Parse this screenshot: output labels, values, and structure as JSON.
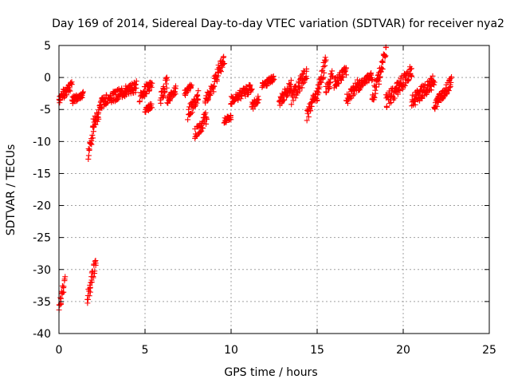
{
  "chart_data": {
    "type": "scatter",
    "title": "Day 169 of 2014, Sidereal Day-to-day VTEC variation (SDTVAR) for receiver nya2",
    "xlabel": "GPS time / hours",
    "ylabel": "SDTVAR / TECUs",
    "xlim": [
      0,
      25
    ],
    "ylim": [
      -40,
      5
    ],
    "xticks": [
      "0",
      "5",
      "10",
      "15",
      "20",
      "25"
    ],
    "yticks": [
      "5",
      "0",
      "-5",
      "-10",
      "-15",
      "-20",
      "-25",
      "-30",
      "-35",
      "-40"
    ],
    "grid": true,
    "marker": "plus",
    "series_color": "#ff0000",
    "segments": [
      {
        "x0": 0.0,
        "x1": 0.35,
        "y0": -35.8,
        "y1": -31.5
      },
      {
        "x0": 0.0,
        "x1": 0.3,
        "y0": -3.8,
        "y1": -2.2
      },
      {
        "x0": 0.3,
        "x1": 0.75,
        "y0": -2.6,
        "y1": -1.2
      },
      {
        "x0": 0.75,
        "x1": 1.4,
        "y0": -3.6,
        "y1": -2.6
      },
      {
        "x0": 1.65,
        "x1": 2.15,
        "y0": -34.5,
        "y1": -28.5
      },
      {
        "x0": 1.7,
        "x1": 2.0,
        "y0": -11.8,
        "y1": -8.0
      },
      {
        "x0": 2.0,
        "x1": 2.5,
        "y0": -7.5,
        "y1": -4.2
      },
      {
        "x0": 2.5,
        "x1": 4.5,
        "y0": -3.8,
        "y1": -1.4
      },
      {
        "x0": 4.7,
        "x1": 5.4,
        "y0": -3.2,
        "y1": -0.6
      },
      {
        "x0": 5.0,
        "x1": 5.4,
        "y0": -5.1,
        "y1": -4.3
      },
      {
        "x0": 5.9,
        "x1": 6.3,
        "y0": -3.3,
        "y1": -0.3
      },
      {
        "x0": 6.3,
        "x1": 6.8,
        "y0": -3.6,
        "y1": -2.0
      },
      {
        "x0": 7.3,
        "x1": 7.7,
        "y0": -2.5,
        "y1": -1.2
      },
      {
        "x0": 7.5,
        "x1": 8.1,
        "y0": -5.8,
        "y1": -2.8
      },
      {
        "x0": 7.9,
        "x1": 8.6,
        "y0": -9.0,
        "y1": -6.0
      },
      {
        "x0": 8.5,
        "x1": 9.0,
        "y0": -3.5,
        "y1": -1.5
      },
      {
        "x0": 9.0,
        "x1": 9.6,
        "y0": -0.8,
        "y1": 3.0
      },
      {
        "x0": 9.6,
        "x1": 10.0,
        "y0": -6.8,
        "y1": -6.2
      },
      {
        "x0": 10.0,
        "x1": 11.2,
        "y0": -3.6,
        "y1": -1.6
      },
      {
        "x0": 11.2,
        "x1": 11.6,
        "y0": -4.7,
        "y1": -3.2
      },
      {
        "x0": 11.8,
        "x1": 12.5,
        "y0": -1.2,
        "y1": -0.2
      },
      {
        "x0": 12.8,
        "x1": 13.5,
        "y0": -3.8,
        "y1": -1.2
      },
      {
        "x0": 13.5,
        "x1": 14.4,
        "y0": -3.2,
        "y1": 0.8
      },
      {
        "x0": 14.4,
        "x1": 14.9,
        "y0": -5.8,
        "y1": -3.0
      },
      {
        "x0": 14.9,
        "x1": 15.5,
        "y0": -3.4,
        "y1": 2.6
      },
      {
        "x0": 15.5,
        "x1": 15.9,
        "y0": -2.2,
        "y1": 0.5
      },
      {
        "x0": 16.0,
        "x1": 16.7,
        "y0": -1.0,
        "y1": 1.2
      },
      {
        "x0": 16.7,
        "x1": 17.4,
        "y0": -3.5,
        "y1": -1.0
      },
      {
        "x0": 17.4,
        "x1": 18.2,
        "y0": -1.4,
        "y1": 0.2
      },
      {
        "x0": 18.2,
        "x1": 18.6,
        "y0": -3.5,
        "y1": 0.2
      },
      {
        "x0": 18.6,
        "x1": 19.0,
        "y0": 0.5,
        "y1": 4.3
      },
      {
        "x0": 19.0,
        "x1": 20.5,
        "y0": -3.8,
        "y1": 1.0
      },
      {
        "x0": 20.5,
        "x1": 21.8,
        "y0": -3.8,
        "y1": -0.5
      },
      {
        "x0": 21.8,
        "x1": 22.3,
        "y0": -4.4,
        "y1": -2.5
      },
      {
        "x0": 22.3,
        "x1": 22.8,
        "y0": -2.8,
        "y1": -0.6
      }
    ]
  }
}
